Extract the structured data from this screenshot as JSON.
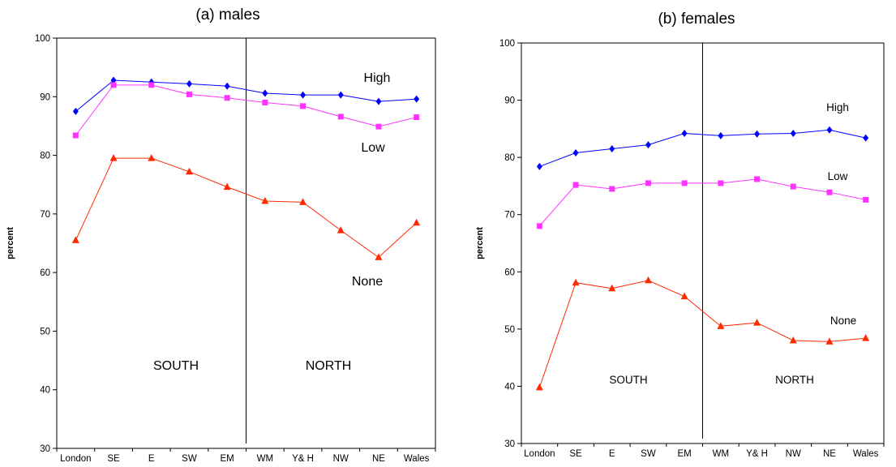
{
  "chart_data": [
    {
      "type": "line",
      "title": "(a) males",
      "ylabel": "percent",
      "xlabel": "",
      "ylim": [
        30,
        100
      ],
      "yticks": [
        30,
        40,
        50,
        60,
        70,
        80,
        90,
        100
      ],
      "categories": [
        "London",
        "SE",
        "E",
        "SW",
        "EM",
        "WM",
        "Y& H",
        "NW",
        "NE",
        "Wales"
      ],
      "series": [
        {
          "name": "High",
          "color": "#0000ff",
          "marker": "diamond",
          "values": [
            87.5,
            92.8,
            92.5,
            92.2,
            91.8,
            90.6,
            90.3,
            90.3,
            89.2,
            89.6
          ]
        },
        {
          "name": "Low",
          "color": "#ff33ff",
          "marker": "square",
          "values": [
            83.4,
            92.0,
            92.0,
            90.4,
            89.8,
            89.0,
            88.4,
            86.6,
            84.9,
            86.5
          ]
        },
        {
          "name": "None",
          "color": "#ff2a00",
          "marker": "triangle",
          "values": [
            65.5,
            79.5,
            79.5,
            77.2,
            74.6,
            72.2,
            72.0,
            67.2,
            62.6,
            68.5
          ]
        }
      ],
      "annotations": [
        "SOUTH",
        "NORTH"
      ],
      "divider_after_category": "EM",
      "grid": false
    },
    {
      "type": "line",
      "title": "(b) females",
      "ylabel": "percent",
      "xlabel": "",
      "ylim": [
        30,
        100
      ],
      "yticks": [
        30,
        40,
        50,
        60,
        70,
        80,
        90,
        100
      ],
      "categories": [
        "London",
        "SE",
        "E",
        "SW",
        "EM",
        "WM",
        "Y& H",
        "NW",
        "NE",
        "Wales"
      ],
      "series": [
        {
          "name": "High",
          "color": "#0000ff",
          "marker": "diamond",
          "values": [
            78.4,
            80.8,
            81.5,
            82.2,
            84.2,
            83.8,
            84.1,
            84.2,
            84.8,
            83.4
          ]
        },
        {
          "name": "Low",
          "color": "#ff33ff",
          "marker": "square",
          "values": [
            68.0,
            75.2,
            74.5,
            75.5,
            75.5,
            75.5,
            76.2,
            74.9,
            73.9,
            72.6
          ]
        },
        {
          "name": "None",
          "color": "#ff2a00",
          "marker": "triangle",
          "values": [
            39.8,
            58.1,
            57.1,
            58.5,
            55.7,
            50.5,
            51.1,
            48.0,
            47.8,
            48.4
          ]
        }
      ],
      "annotations": [
        "SOUTH",
        "NORTH"
      ],
      "divider_after_category": "EM",
      "grid": false
    }
  ]
}
